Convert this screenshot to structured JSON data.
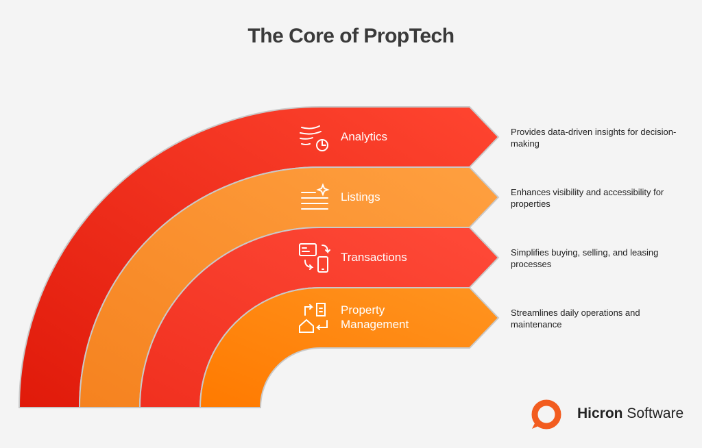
{
  "title": "The Core of PropTech",
  "bands": [
    {
      "label": "Analytics",
      "description": "Provides data-driven insights for decision-making"
    },
    {
      "label": "Listings",
      "description": "Enhances visibility and accessibility for properties"
    },
    {
      "label": "Transactions",
      "description": "Simplifies buying, selling, and leasing processes"
    },
    {
      "label": "Property Management",
      "description": "Streamlines daily operations and maintenance"
    }
  ],
  "logo": {
    "brand": "Hicron",
    "product": "Software"
  }
}
